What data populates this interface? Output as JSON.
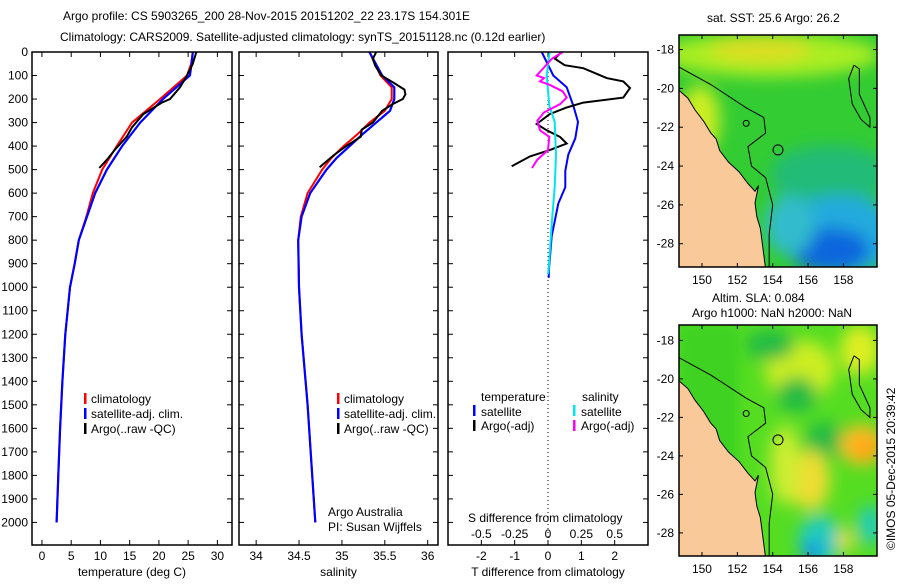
{
  "title_line1": "Argo profile: CS 5903265_200 28-Nov-2015 20151202_22 23.17S 154.301E",
  "title_line2": "Climatology: CARS2009. Satellite-adjusted climatology: synTS_20151128.nc (0.12d earlier)",
  "colors": {
    "climatology": "#ff0000",
    "satellite": "#0000ff",
    "argo": "#000000",
    "sal_satellite": "#00e5ee",
    "sal_argo": "#ff00ff",
    "land": "#f9c99a"
  },
  "chart_data": [
    {
      "type": "line",
      "xlabel": "temperature (deg C)",
      "ylabel": "",
      "xlim": [
        -1.7,
        32.5
      ],
      "ylim": [
        2096,
        0
      ],
      "xticks": [
        "0",
        "5",
        "10",
        "15",
        "20",
        "25",
        "30"
      ],
      "xtick_values": [
        0,
        5,
        10,
        15,
        20,
        25,
        30
      ],
      "yticks": [
        "0",
        "100",
        "200",
        "300",
        "400",
        "500",
        "600",
        "700",
        "800",
        "900",
        "1000",
        "1100",
        "1200",
        "1300",
        "1400",
        "1500",
        "1600",
        "1700",
        "1800",
        "1900",
        "2000"
      ],
      "ytick_values": [
        0,
        100,
        200,
        300,
        400,
        500,
        600,
        700,
        800,
        900,
        1000,
        1100,
        1200,
        1300,
        1400,
        1500,
        1600,
        1700,
        1800,
        1900,
        2000
      ],
      "legend": [
        "climatology",
        "satellite-adj. clim.",
        "Argo(..raw -QC)"
      ],
      "series": [
        {
          "name": "climatology",
          "color_key": "climatology",
          "depth": [
            0,
            50,
            100,
            200,
            300,
            400,
            500,
            600,
            700,
            800,
            900,
            1000,
            1200,
            1400,
            1600,
            1800,
            2000
          ],
          "values": [
            25.8,
            25.5,
            24.8,
            20.2,
            15.4,
            12.8,
            10.3,
            8.7,
            7.6,
            6.3,
            5.6,
            4.8,
            4.0,
            3.5,
            3.1,
            2.8,
            2.5
          ]
        },
        {
          "name": "satellite-adj. clim.",
          "color_key": "satellite",
          "depth": [
            0,
            50,
            100,
            200,
            300,
            400,
            500,
            600,
            700,
            800,
            900,
            1000,
            1200,
            1400,
            1600,
            1800,
            2000
          ],
          "values": [
            25.8,
            25.6,
            25.3,
            20.7,
            16.8,
            13.7,
            11.1,
            9.1,
            7.7,
            6.3,
            5.6,
            4.8,
            4.0,
            3.5,
            3.1,
            2.8,
            2.5
          ]
        },
        {
          "name": "Argo(..raw -QC)",
          "color_key": "argo",
          "depth": [
            0,
            50,
            100,
            150,
            200,
            215,
            265,
            320,
            360,
            415,
            458,
            493
          ],
          "values": [
            26.4,
            25.8,
            24.8,
            23.6,
            21.9,
            20.5,
            17.3,
            15.4,
            14.5,
            12.5,
            11.1,
            9.8
          ]
        }
      ]
    },
    {
      "type": "line",
      "xlabel": "salinity",
      "xlim": [
        33.8,
        36.12
      ],
      "ylim": [
        2096,
        0
      ],
      "xticks": [
        "34",
        "34.5",
        "35",
        "35.5",
        "36"
      ],
      "xtick_values": [
        34,
        34.5,
        35,
        35.5,
        36
      ],
      "legend": [
        "climatology",
        "satellite-adj. clim.",
        "Argo(..raw -QC)"
      ],
      "annotation": [
        "Argo Australia",
        "PI: Susan Wijffels"
      ],
      "series": [
        {
          "name": "climatology",
          "color_key": "climatology",
          "depth": [
            0,
            100,
            150,
            200,
            250,
            300,
            350,
            400,
            450,
            500,
            600,
            700,
            800,
            1000,
            1200,
            1500,
            2000
          ],
          "values": [
            35.32,
            35.45,
            35.58,
            35.58,
            35.5,
            35.32,
            35.18,
            35.02,
            34.88,
            34.77,
            34.6,
            34.52,
            34.49,
            34.5,
            34.53,
            34.6,
            34.69
          ]
        },
        {
          "name": "satellite-adj. clim.",
          "color_key": "satellite",
          "depth": [
            0,
            100,
            150,
            200,
            250,
            300,
            350,
            400,
            450,
            500,
            600,
            700,
            800,
            1000,
            1200,
            1500,
            2000
          ],
          "values": [
            35.32,
            35.47,
            35.61,
            35.61,
            35.56,
            35.4,
            35.24,
            35.09,
            34.94,
            34.82,
            34.63,
            34.53,
            34.49,
            34.5,
            34.53,
            34.6,
            34.69
          ]
        },
        {
          "name": "Argo(..raw -QC)",
          "color_key": "argo",
          "depth": [
            0,
            30,
            60,
            100,
            130,
            160,
            180,
            200,
            220,
            250,
            300,
            330,
            360,
            400,
            440,
            490
          ],
          "values": [
            35.4,
            35.36,
            35.39,
            35.46,
            35.6,
            35.73,
            35.74,
            35.71,
            35.6,
            35.47,
            35.36,
            35.23,
            35.22,
            35.05,
            34.9,
            34.74
          ]
        }
      ]
    },
    {
      "type": "line",
      "xlabel": "T difference from climatology",
      "xlabel2": "S difference from climatology",
      "xlim": [
        -3,
        3
      ],
      "ylim": [
        2096,
        0
      ],
      "xticks": [
        "-2",
        "-1",
        "0",
        "1",
        "2"
      ],
      "xtick_values": [
        -2,
        -1,
        0,
        1,
        2
      ],
      "s_xticks": [
        "-0.5",
        "-0.25",
        "0",
        "0.25",
        "0.5"
      ],
      "s_xtick_values": [
        -0.5,
        -0.25,
        0,
        0.25,
        0.5
      ],
      "legend_temperature": {
        "heading": "temperature",
        "items": [
          "satellite",
          "Argo(-adj)"
        ]
      },
      "legend_salinity": {
        "heading": "salinity",
        "items": [
          "satellite",
          "Argo(-adj)"
        ]
      },
      "series": [
        {
          "name": "temperature satellite",
          "color_key": "satellite",
          "axis": "T",
          "depth": [
            0,
            100,
            150,
            228,
            297,
            367,
            436,
            506,
            575,
            644,
            783,
            922,
            960
          ],
          "values": [
            -0.19,
            0.16,
            0.56,
            0.76,
            0.9,
            0.82,
            0.61,
            0.52,
            0.52,
            0.31,
            0.11,
            0.03,
            0.02
          ]
        },
        {
          "name": "temperature Argo(-adj)",
          "color_key": "argo",
          "axis": "T",
          "depth": [
            0,
            28,
            56,
            69,
            111,
            125,
            153,
            194,
            215,
            236,
            264,
            306,
            333,
            361,
            389,
            417,
            444,
            486
          ],
          "values": [
            0.41,
            0.2,
            0.5,
            1.06,
            1.76,
            2.26,
            2.46,
            2.26,
            1.06,
            0.56,
            0.05,
            -0.34,
            -0.04,
            0.36,
            0.56,
            0.05,
            -0.54,
            -1.09
          ]
        },
        {
          "name": "salinity satellite",
          "color_key": "sal_satellite",
          "axis": "S",
          "depth": [
            0,
            100,
            228,
            297,
            436,
            575,
            714,
            922,
            945
          ],
          "values": [
            0.012,
            -0.01,
            0.01,
            0.05,
            0.06,
            0.05,
            0.03,
            0.005,
            0.0
          ]
        },
        {
          "name": "salinity Argo(-adj)",
          "color_key": "sal_argo",
          "axis": "S",
          "depth": [
            0,
            28,
            100,
            111,
            125,
            139,
            167,
            194,
            222,
            257,
            292,
            333,
            361,
            417,
            458,
            493
          ],
          "values": [
            0.11,
            0.03,
            -0.085,
            -0.03,
            -0.06,
            0.01,
            0.11,
            0.14,
            0.09,
            -0.03,
            -0.08,
            -0.06,
            0.01,
            0.0,
            -0.08,
            -0.12
          ]
        }
      ]
    }
  ],
  "map_sst": {
    "title": "sat. SST: 25.6 Argo: 26.2",
    "lon_ticks": [
      "150",
      "152",
      "154",
      "156",
      "158"
    ],
    "lat_ticks": [
      "-18",
      "-20",
      "-22",
      "-24",
      "-26",
      "-28"
    ]
  },
  "map_sla": {
    "title1": "Altim. SLA: 0.084",
    "title2": "Argo h1000: NaN h2000: NaN",
    "lon_ticks": [
      "150",
      "152",
      "154",
      "156",
      "158"
    ],
    "lat_ticks": [
      "-18",
      "-20",
      "-22",
      "-24",
      "-26",
      "-28"
    ]
  },
  "credit": "©IMOS 05-Dec-2015 20:39:42"
}
